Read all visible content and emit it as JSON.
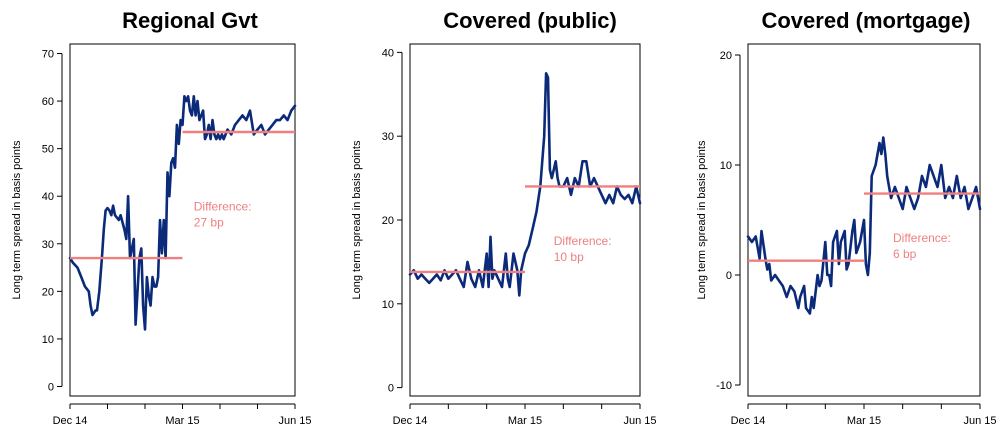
{
  "colors": {
    "series": "#0b2a7a",
    "mean": "#f08080",
    "annotation": "#f08080"
  },
  "chart_data": [
    {
      "type": "line",
      "title": "Regional Gvt",
      "ylabel": "Long term spread in basis points",
      "ylim": [
        -2,
        72
      ],
      "yticks": [
        0,
        10,
        20,
        30,
        40,
        50,
        60,
        70
      ],
      "xlim": [
        0,
        6
      ],
      "xticks": [
        0,
        1,
        2,
        3,
        4,
        5,
        6
      ],
      "xtick_labels": [
        {
          "x": 0,
          "label": "Dec 14"
        },
        {
          "x": 3,
          "label": "Mar 15"
        },
        {
          "x": 6,
          "label": "Jun 15"
        }
      ],
      "series": [
        {
          "x": [
            0,
            0.08,
            0.2,
            0.3,
            0.4,
            0.5,
            0.55,
            0.6,
            0.68,
            0.72,
            0.78,
            0.85,
            0.9,
            0.95,
            1.0,
            1.05,
            1.1,
            1.15,
            1.2,
            1.3,
            1.35,
            1.45,
            1.5,
            1.55,
            1.6,
            1.7,
            1.75,
            1.8,
            1.85,
            1.9,
            1.95,
            2.0,
            2.05,
            2.1,
            2.15,
            2.2,
            2.25,
            2.3,
            2.35,
            2.4,
            2.45,
            2.5,
            2.55,
            2.6,
            2.65,
            2.7,
            2.75,
            2.8,
            2.85,
            2.9,
            2.95,
            3.0,
            3.05,
            3.1,
            3.15,
            3.2,
            3.25,
            3.3,
            3.35,
            3.4,
            3.45,
            3.5,
            3.55,
            3.6,
            3.65,
            3.7,
            3.75,
            3.8,
            3.85,
            3.9,
            3.95,
            4.0,
            4.05,
            4.1,
            4.15,
            4.2,
            4.3,
            4.4,
            4.5,
            4.6,
            4.7,
            4.8,
            4.9,
            5.0,
            5.1,
            5.2,
            5.3,
            5.4,
            5.5,
            5.6,
            5.7,
            5.8,
            5.9,
            6.0
          ],
          "y": [
            27,
            26,
            25,
            23,
            21,
            20,
            17,
            15,
            16,
            16,
            20,
            27,
            33,
            37,
            37.5,
            37,
            36,
            38,
            36,
            35,
            36,
            33,
            31,
            40,
            27,
            31,
            13,
            20,
            27,
            29,
            17,
            12,
            23,
            19,
            17,
            23,
            21,
            21,
            23,
            35,
            28,
            35,
            27,
            45,
            40,
            47,
            48,
            46,
            55,
            51,
            56,
            55,
            61,
            60,
            61,
            58,
            57,
            61,
            57,
            60,
            56,
            57,
            58,
            52,
            53,
            55,
            52,
            56,
            53,
            52,
            53,
            52,
            53,
            52,
            53,
            54,
            53,
            55,
            56,
            57,
            56,
            58,
            53,
            54,
            55,
            53,
            54,
            55,
            56,
            56,
            57,
            56,
            58,
            59
          ]
        }
      ],
      "means": [
        {
          "x0": 0,
          "x1": 3,
          "y": 27
        },
        {
          "x0": 3,
          "x1": 6,
          "y": 53.5
        }
      ],
      "annotation": {
        "lines": [
          "Difference:",
          "27 bp"
        ],
        "x": 3.3,
        "y": 37
      }
    },
    {
      "type": "line",
      "title": "Covered (public)",
      "ylabel": "Long term spread in basis points",
      "ylim": [
        -1,
        41
      ],
      "yticks": [
        0,
        10,
        20,
        30,
        40
      ],
      "xlim": [
        0,
        6
      ],
      "xticks": [
        0,
        1,
        2,
        3,
        4,
        5,
        6
      ],
      "xtick_labels": [
        {
          "x": 0,
          "label": "Dec 14"
        },
        {
          "x": 3,
          "label": "Mar 15"
        },
        {
          "x": 6,
          "label": "Jun 15"
        }
      ],
      "series": [
        {
          "x": [
            0,
            0.1,
            0.2,
            0.3,
            0.4,
            0.5,
            0.6,
            0.7,
            0.8,
            0.9,
            1.0,
            1.1,
            1.2,
            1.3,
            1.4,
            1.5,
            1.6,
            1.7,
            1.8,
            1.9,
            2.0,
            2.05,
            2.1,
            2.15,
            2.2,
            2.3,
            2.4,
            2.5,
            2.55,
            2.6,
            2.7,
            2.8,
            2.85,
            2.9,
            3.0,
            3.1,
            3.2,
            3.3,
            3.4,
            3.5,
            3.55,
            3.6,
            3.65,
            3.7,
            3.75,
            3.8,
            3.85,
            3.9,
            4.0,
            4.1,
            4.2,
            4.3,
            4.4,
            4.5,
            4.6,
            4.7,
            4.8,
            4.9,
            5.0,
            5.1,
            5.2,
            5.3,
            5.4,
            5.5,
            5.6,
            5.7,
            5.8,
            5.9,
            6.0
          ],
          "y": [
            13.5,
            14,
            13,
            13.5,
            13,
            12.5,
            13,
            13.5,
            12.8,
            14,
            13,
            13.5,
            14,
            13,
            12,
            15,
            13,
            12,
            14,
            12,
            16,
            12,
            18,
            13,
            14,
            13,
            12,
            16,
            13,
            12,
            16,
            14,
            11,
            14,
            16,
            17,
            19,
            21,
            24,
            30,
            37.5,
            37,
            26,
            25,
            26,
            27,
            25,
            24,
            24,
            25,
            23,
            25,
            24,
            27,
            27,
            24,
            25,
            24,
            23,
            22,
            23,
            22,
            24,
            23,
            22.5,
            23,
            22,
            24,
            22
          ]
        }
      ],
      "means": [
        {
          "x0": 0,
          "x1": 3,
          "y": 13.8
        },
        {
          "x0": 3,
          "x1": 6,
          "y": 24
        }
      ],
      "annotation": {
        "lines": [
          "Difference:",
          "10 bp"
        ],
        "x": 3.75,
        "y": 17
      }
    },
    {
      "type": "line",
      "title": "Covered (mortgage)",
      "ylabel": "Long term spread in basis points",
      "ylim": [
        -11,
        21
      ],
      "yticks": [
        -10,
        0,
        10,
        20
      ],
      "xlim": [
        0,
        6
      ],
      "xticks": [
        0,
        1,
        2,
        3,
        4,
        5,
        6
      ],
      "xtick_labels": [
        {
          "x": 0,
          "label": "Dec 14"
        },
        {
          "x": 3,
          "label": "Mar 15"
        },
        {
          "x": 6,
          "label": "Jun 15"
        }
      ],
      "series": [
        {
          "x": [
            0,
            0.1,
            0.2,
            0.3,
            0.35,
            0.45,
            0.5,
            0.55,
            0.6,
            0.7,
            0.8,
            0.9,
            1.0,
            1.1,
            1.2,
            1.3,
            1.35,
            1.45,
            1.5,
            1.6,
            1.65,
            1.7,
            1.8,
            1.85,
            1.9,
            2.0,
            2.05,
            2.1,
            2.15,
            2.2,
            2.3,
            2.35,
            2.4,
            2.5,
            2.55,
            2.6,
            2.7,
            2.75,
            2.8,
            2.9,
            3.0,
            3.05,
            3.1,
            3.15,
            3.2,
            3.3,
            3.4,
            3.45,
            3.5,
            3.55,
            3.6,
            3.65,
            3.7,
            3.8,
            3.9,
            4.0,
            4.1,
            4.2,
            4.3,
            4.4,
            4.5,
            4.6,
            4.7,
            4.8,
            4.9,
            5.0,
            5.1,
            5.2,
            5.3,
            5.4,
            5.5,
            5.6,
            5.7,
            5.8,
            5.9,
            6.0
          ],
          "y": [
            3.5,
            3,
            3.5,
            1.5,
            4,
            1.5,
            0.5,
            1,
            -0.5,
            0,
            -0.5,
            -1,
            -2,
            -1,
            -1.5,
            -3,
            -2,
            -1,
            -3,
            -3.5,
            -2,
            -3,
            0,
            -1,
            -0.5,
            3,
            0,
            0,
            -1,
            3,
            4,
            1,
            3,
            4,
            0.5,
            1,
            4,
            5,
            2,
            3,
            5,
            1,
            0,
            2,
            9,
            10,
            12,
            11,
            12.5,
            11,
            9,
            8,
            7,
            8,
            7,
            6,
            8,
            7,
            6,
            7,
            9,
            8,
            10,
            9,
            8,
            10,
            7,
            8,
            7,
            9,
            7,
            8,
            6,
            7,
            8,
            6
          ]
        }
      ],
      "means": [
        {
          "x0": 0,
          "x1": 3,
          "y": 1.3
        },
        {
          "x0": 3,
          "x1": 6,
          "y": 7.4
        }
      ],
      "annotation": {
        "lines": [
          "Difference:",
          "6 bp"
        ],
        "x": 3.75,
        "y": 3
      }
    }
  ]
}
